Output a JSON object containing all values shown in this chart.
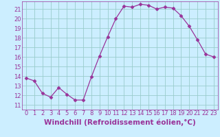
{
  "x": [
    0,
    1,
    2,
    3,
    4,
    5,
    6,
    7,
    8,
    9,
    10,
    11,
    12,
    13,
    14,
    15,
    16,
    17,
    18,
    19,
    20,
    21,
    22,
    23
  ],
  "y": [
    13.8,
    13.5,
    12.2,
    11.8,
    12.8,
    12.1,
    11.5,
    11.5,
    13.9,
    16.1,
    18.1,
    20.0,
    21.3,
    21.2,
    21.5,
    21.4,
    21.0,
    21.2,
    21.1,
    20.3,
    19.2,
    17.8,
    16.3,
    16.0
  ],
  "line_color": "#993399",
  "marker": "D",
  "marker_size": 2.5,
  "bg_color": "#cceeff",
  "grid_color": "#99cccc",
  "xlabel": "Windchill (Refroidissement éolien,°C)",
  "xlabel_color": "#993399",
  "ylabel_ticks": [
    11,
    12,
    13,
    14,
    15,
    16,
    17,
    18,
    19,
    20,
    21
  ],
  "ylim": [
    10.5,
    21.8
  ],
  "xlim": [
    -0.5,
    23.5
  ],
  "tick_fontsize": 6,
  "xlabel_fontsize": 7.5
}
